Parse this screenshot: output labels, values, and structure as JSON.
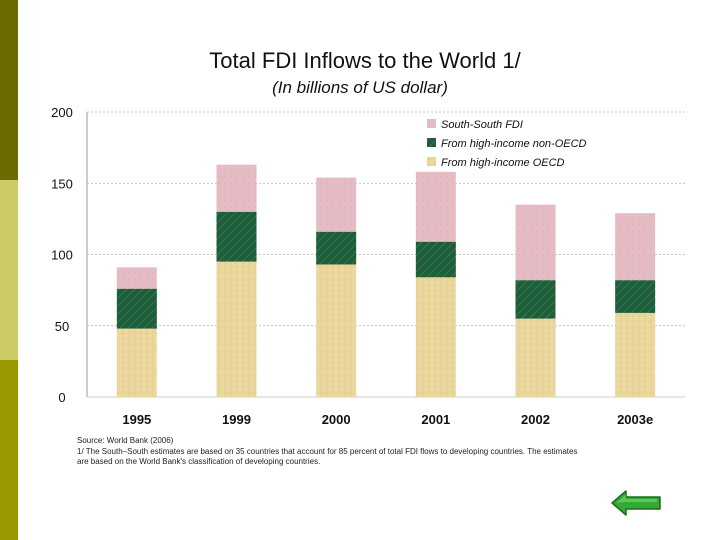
{
  "slide": {
    "sidebar_colors": [
      "#6b6b00",
      "#cccc66",
      "#999900"
    ]
  },
  "chart_data": {
    "type": "bar",
    "stacked": true,
    "title": "Total FDI Inflows to the World 1/",
    "subtitle": "(In billions of US dollar)",
    "xlabel": "",
    "ylabel": "",
    "ylim": [
      0,
      200
    ],
    "yticks": [
      0,
      50,
      100,
      150,
      200
    ],
    "grid": true,
    "legend_position": "top-right",
    "categories": [
      "1995",
      "1999",
      "2000",
      "2001",
      "2002",
      "2003e"
    ],
    "series": [
      {
        "name": "From high-income OECD",
        "color": "#ecd9a0",
        "values": [
          48,
          95,
          93,
          84,
          55,
          59
        ]
      },
      {
        "name": "From high-income non-OECD",
        "color": "#1e5c3a",
        "values": [
          28,
          35,
          23,
          25,
          27,
          23
        ]
      },
      {
        "name": "South-South FDI",
        "color": "#e6bcc4",
        "values": [
          15,
          33,
          38,
          49,
          53,
          47
        ]
      }
    ],
    "legend_order": [
      "South-South FDI",
      "From high-income non-OECD",
      "From high-income OECD"
    ]
  },
  "notes": {
    "source": "Source: World Bank (2006)",
    "footnote_line1": "1/ The South–South estimates are based on 35 countries that account for 85 percent of total FDI flows to developing countries. The estimates",
    "footnote_line2": "are based on the World Bank's classification of developing countries."
  },
  "nav": {
    "back_arrow_color": "#33aa33"
  }
}
